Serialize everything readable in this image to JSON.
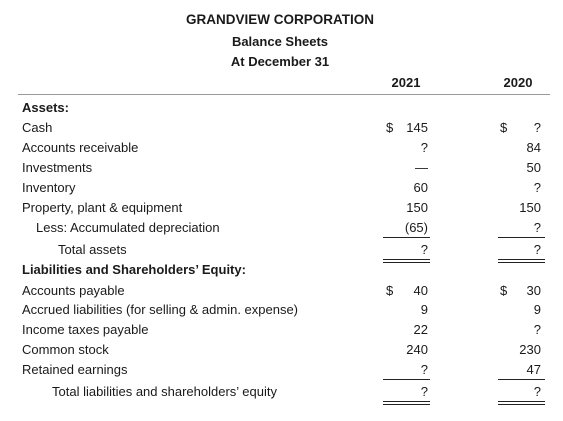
{
  "header": {
    "company": "GRANDVIEW CORPORATION",
    "title": "Balance Sheets",
    "date": "At December 31"
  },
  "years": [
    "2021",
    "2020"
  ],
  "rows": [
    {
      "label": "Assets:",
      "c1_sign": "",
      "c1": "",
      "c2_sign": "",
      "c2": ""
    },
    {
      "label": "Cash",
      "c1_sign": "$",
      "c1": "145",
      "c2_sign": "$",
      "c2": "?"
    },
    {
      "label": "Accounts receivable",
      "c1_sign": "",
      "c1": "?",
      "c2_sign": "",
      "c2": "84"
    },
    {
      "label": "Investments",
      "c1_sign": "",
      "c1": "—",
      "c2_sign": "",
      "c2": "50"
    },
    {
      "label": "Inventory",
      "c1_sign": "",
      "c1": "60",
      "c2_sign": "",
      "c2": "?"
    },
    {
      "label": "Property, plant & equipment",
      "c1_sign": "",
      "c1": "150",
      "c2_sign": "",
      "c2": "150"
    },
    {
      "label": "Less: Accumulated depreciation",
      "c1_sign": "",
      "c1": "(65)",
      "c2_sign": "",
      "c2": "?"
    },
    {
      "label": "Total assets",
      "c1_sign": "",
      "c1": "?",
      "c2_sign": "",
      "c2": "?"
    },
    {
      "label": "Liabilities and Shareholders’ Equity:",
      "c1_sign": "",
      "c1": "",
      "c2_sign": "",
      "c2": ""
    },
    {
      "label": "Accounts payable",
      "c1_sign": "$",
      "c1": "40",
      "c2_sign": "$",
      "c2": "30"
    },
    {
      "label": "Accrued liabilities (for selling & admin. expense)",
      "c1_sign": "",
      "c1": "9",
      "c2_sign": "",
      "c2": "9"
    },
    {
      "label": "Income taxes payable",
      "c1_sign": "",
      "c1": "22",
      "c2_sign": "",
      "c2": "?"
    },
    {
      "label": "Common stock",
      "c1_sign": "",
      "c1": "240",
      "c2_sign": "",
      "c2": "230"
    },
    {
      "label": "Retained earnings",
      "c1_sign": "",
      "c1": "?",
      "c2_sign": "",
      "c2": "47"
    },
    {
      "label": "Total liabilities and shareholders’ equity",
      "c1_sign": "",
      "c1": "?",
      "c2_sign": "",
      "c2": "?"
    }
  ]
}
